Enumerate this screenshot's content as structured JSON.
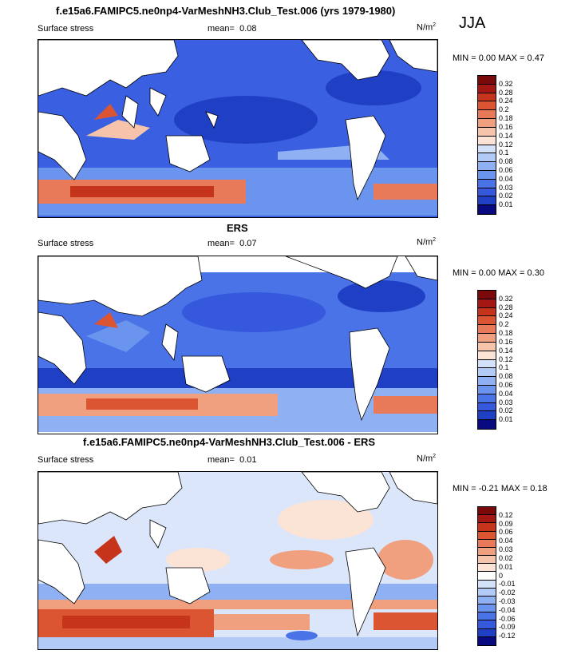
{
  "season": "JJA",
  "palette_pos": [
    "#0a0a80",
    "#1f3fc4",
    "#3558dd",
    "#4a73e8",
    "#6b94ef",
    "#8fb0f3",
    "#b2caf6",
    "#d4e2f9",
    "#fbe3d6",
    "#f6c4ab",
    "#f0a07f",
    "#e97a59",
    "#dc5533",
    "#c7341c",
    "#a51712",
    "#7a0a0a"
  ],
  "palette_diff": [
    "#0a0a80",
    "#1f3fc4",
    "#3558dd",
    "#4a73e8",
    "#6b94ef",
    "#8fb0f3",
    "#b2caf6",
    "#d4e2f9",
    "#ffffff",
    "#fbe3d6",
    "#f6c4ab",
    "#f0a07f",
    "#e97a59",
    "#dc5533",
    "#c7341c",
    "#a51712",
    "#7a0a0a"
  ],
  "panels": [
    {
      "title": "f.e15a6.FAMIPC5.ne0np4-VarMeshNH3.Club_Test.006 (yrs 1979-1980)",
      "left_label": "Surface stress",
      "mean_label": "mean=",
      "mean_value": "0.08",
      "units": "N/m",
      "units_sup": "2",
      "minmax": "MIN =  0.00 MAX =  0.47",
      "colorbar_ticks": [
        "0.01",
        "0.02",
        "0.03",
        "0.04",
        "0.06",
        "0.08",
        "0.1",
        "0.12",
        "0.14",
        "0.16",
        "0.18",
        "0.2",
        "0.24",
        "0.28",
        "0.32"
      ]
    },
    {
      "title": "ERS",
      "left_label": "Surface stress",
      "mean_label": "mean=",
      "mean_value": "0.07",
      "units": "N/m",
      "units_sup": "2",
      "minmax": "MIN =  0.00 MAX =  0.30",
      "colorbar_ticks": [
        "0.01",
        "0.02",
        "0.03",
        "0.04",
        "0.06",
        "0.08",
        "0.1",
        "0.12",
        "0.14",
        "0.16",
        "0.18",
        "0.2",
        "0.24",
        "0.28",
        "0.32"
      ]
    },
    {
      "title": "f.e15a6.FAMIPC5.ne0np4-VarMeshNH3.Club_Test.006 - ERS",
      "left_label": "Surface stress",
      "mean_label": "mean=",
      "mean_value": "0.01",
      "units": "N/m",
      "units_sup": "2",
      "minmax": "MIN = -0.21 MAX =  0.18",
      "colorbar_ticks": [
        "-0.12",
        "-0.09",
        "-0.06",
        "-0.04",
        "-0.03",
        "-0.02",
        "-0.01",
        "0",
        "0.01",
        "0.02",
        "0.03",
        "0.04",
        "0.06",
        "0.09",
        "0.12"
      ]
    }
  ]
}
